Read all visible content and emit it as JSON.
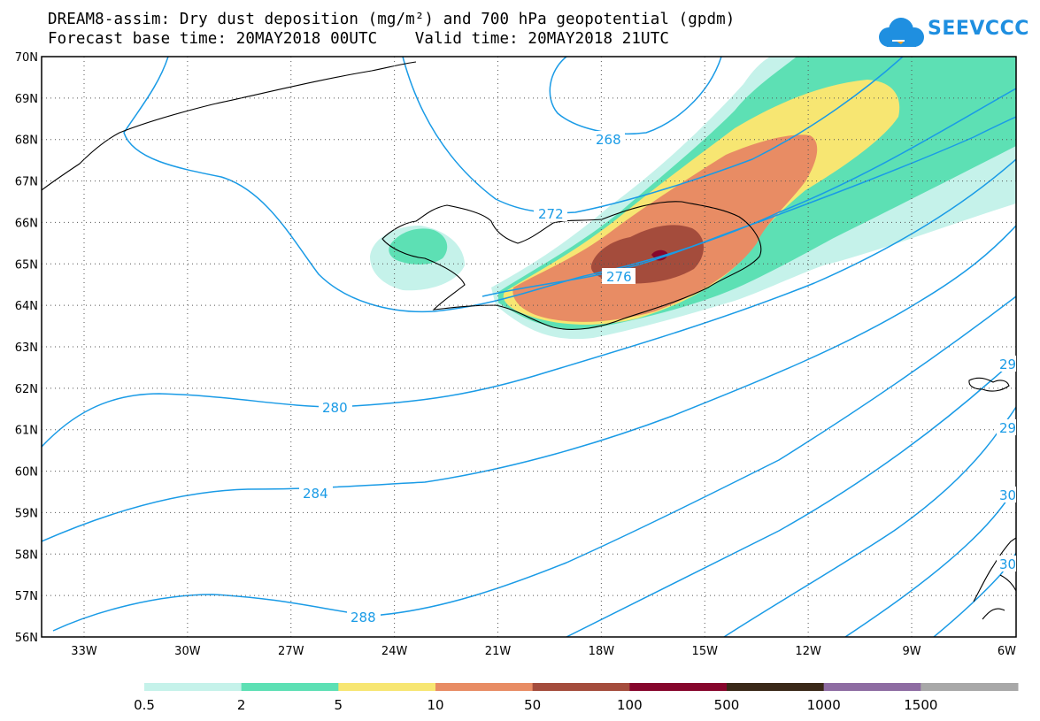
{
  "title": {
    "line1": "DREAM8-assim: Dry dust deposition (mg/m²) and 700 hPa geopotential (gpdm)",
    "line2": "Forecast base time: 20MAY2018 00UTC    Valid time: 20MAY2018 21UTC"
  },
  "logo": {
    "text": "SEEVCCC",
    "icon": "cloud-icon",
    "color": "#1f8fe0"
  },
  "map": {
    "lat_ticks": [
      "70N",
      "69N",
      "68N",
      "67N",
      "66N",
      "65N",
      "64N",
      "63N",
      "62N",
      "61N",
      "60N",
      "59N",
      "58N",
      "57N",
      "56N"
    ],
    "lon_ticks": [
      "33W",
      "30W",
      "27W",
      "24W",
      "21W",
      "18W",
      "15W",
      "12W",
      "9W",
      "6W"
    ],
    "contour_color": "#1a9be6",
    "contour_labels": {
      "c268": "268",
      "c272": "272",
      "c276": "276",
      "c280": "280",
      "c284": "284",
      "c288": "288",
      "e292": "29",
      "e296": "29",
      "e300": "30",
      "e304": "30"
    }
  },
  "legend": {
    "colors": [
      "#c5f2ea",
      "#5de0b4",
      "#f7e672",
      "#e88c64",
      "#a44c3c",
      "#86062c",
      "#3a2818",
      "#8e6ca2",
      "#a8a8a8"
    ],
    "labels": [
      "0.5",
      "2",
      "5",
      "10",
      "50",
      "100",
      "500",
      "1000",
      "1500"
    ]
  }
}
